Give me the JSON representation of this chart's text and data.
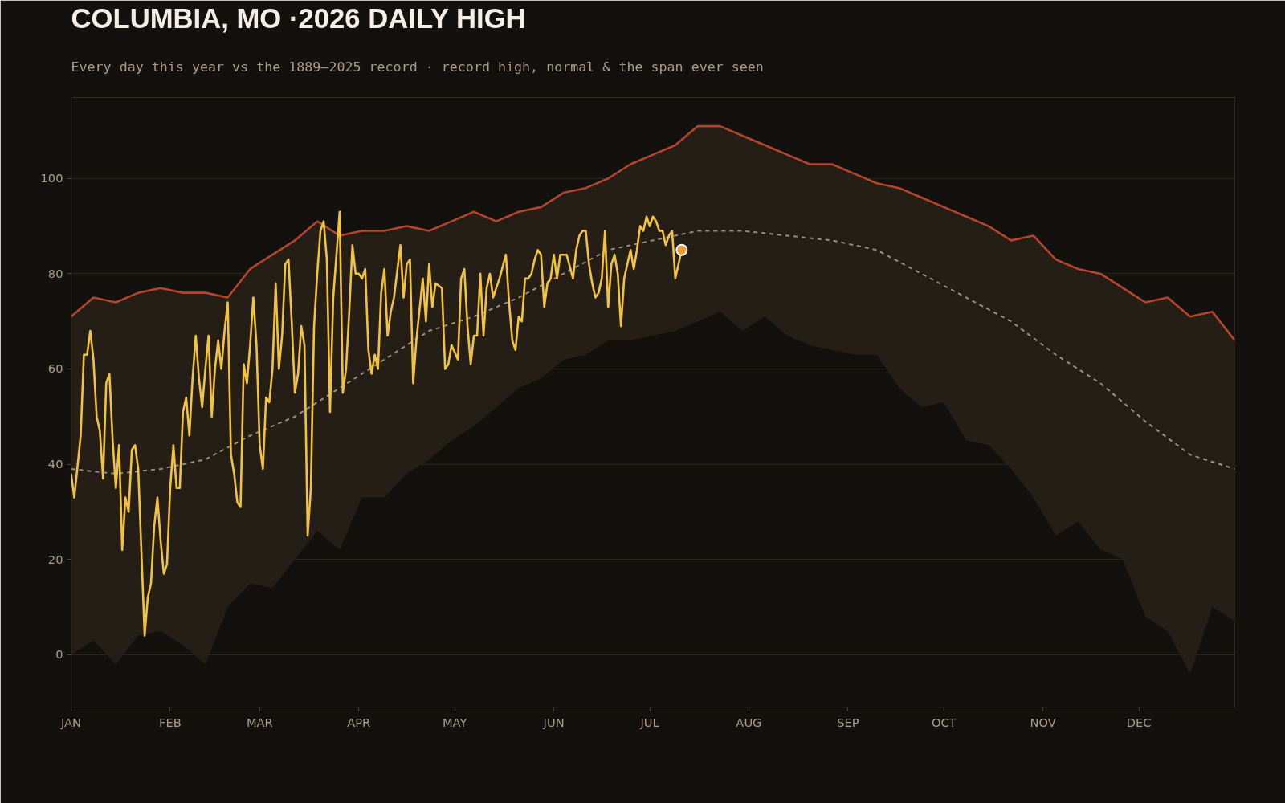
{
  "chart_data": {
    "type": "line",
    "title": "COLUMBIA, MO ·2026 DAILY HIGH",
    "subtitle": "Every day this year vs the 1889–2025 record · record high, normal & the span ever seen",
    "xlim": [
      "2026-01-01",
      "2026-12-31"
    ],
    "xticks": [
      {
        "value": "2026-01-01",
        "label": "JAN"
      },
      {
        "value": "2026-02-01",
        "label": "FEB"
      },
      {
        "value": "2026-03-01",
        "label": "MAR"
      },
      {
        "value": "2026-04-01",
        "label": "APR"
      },
      {
        "value": "2026-05-01",
        "label": "MAY"
      },
      {
        "value": "2026-06-01",
        "label": "JUN"
      },
      {
        "value": "2026-07-01",
        "label": "JUL"
      },
      {
        "value": "2026-08-01",
        "label": "AUG"
      },
      {
        "value": "2026-09-01",
        "label": "SEP"
      },
      {
        "value": "2026-10-01",
        "label": "OCT"
      },
      {
        "value": "2026-11-01",
        "label": "NOV"
      },
      {
        "value": "2026-12-01",
        "label": "DEC"
      }
    ],
    "ylim": [
      -11,
      117
    ],
    "yticks": [
      0,
      20,
      40,
      60,
      80,
      100
    ],
    "grid": "y",
    "series": [
      {
        "color": "#b5452a",
        "x": [
          "2026-01-01",
          "2026-01-08",
          "2026-01-15",
          "2026-01-22",
          "2026-01-29",
          "2026-02-05",
          "2026-02-12",
          "2026-02-19",
          "2026-02-26",
          "2026-03-05",
          "2026-03-12",
          "2026-03-19",
          "2026-03-26",
          "2026-04-02",
          "2026-04-09",
          "2026-04-16",
          "2026-04-23",
          "2026-04-30",
          "2026-05-07",
          "2026-05-14",
          "2026-05-21",
          "2026-05-28",
          "2026-06-04",
          "2026-06-11",
          "2026-06-18",
          "2026-06-25",
          "2026-07-02",
          "2026-07-09",
          "2026-07-16",
          "2026-07-23",
          "2026-07-30",
          "2026-08-06",
          "2026-08-13",
          "2026-08-20",
          "2026-08-27",
          "2026-09-03",
          "2026-09-10",
          "2026-09-17",
          "2026-09-24",
          "2026-10-01",
          "2026-10-08",
          "2026-10-15",
          "2026-10-22",
          "2026-10-29",
          "2026-11-05",
          "2026-11-12",
          "2026-11-19",
          "2026-11-26",
          "2026-12-03",
          "2026-12-10",
          "2026-12-17",
          "2026-12-24",
          "2026-12-31"
        ],
        "values": [
          71,
          75,
          74,
          76,
          77,
          76,
          76,
          75,
          81,
          84,
          87,
          91,
          88,
          89,
          89,
          90,
          89,
          91,
          93,
          91,
          93,
          94,
          97,
          98,
          100,
          103,
          105,
          107,
          111,
          111,
          109,
          107,
          105,
          103,
          103,
          101,
          99,
          98,
          96,
          94,
          92,
          90,
          87,
          88,
          83,
          81,
          80,
          77,
          74,
          75,
          71,
          72,
          66
        ],
        "lower": [
          0,
          3,
          -2,
          4,
          5,
          2,
          -2,
          10,
          15,
          14,
          20,
          26,
          22,
          33,
          33,
          38,
          41,
          45,
          48,
          52,
          56,
          58,
          62,
          63,
          66,
          66,
          67,
          68,
          70,
          72,
          68,
          71,
          67,
          65,
          64,
          63,
          63,
          56,
          52,
          53,
          45,
          44,
          39,
          33,
          25,
          28,
          22,
          20,
          8,
          5,
          -4,
          10,
          7
        ],
        "upper": [
          71,
          75,
          74,
          76,
          77,
          76,
          76,
          75,
          81,
          84,
          87,
          91,
          88,
          89,
          89,
          90,
          89,
          91,
          93,
          91,
          93,
          94,
          97,
          98,
          100,
          103,
          105,
          107,
          111,
          111,
          109,
          107,
          105,
          103,
          103,
          101,
          99,
          98,
          96,
          94,
          92,
          90,
          87,
          88,
          83,
          81,
          80,
          77,
          74,
          75,
          71,
          72,
          66
        ]
      },
      {
        "color": "#9a8e78",
        "line_style": "dashed",
        "x": [
          "2026-01-01",
          "2026-01-15",
          "2026-01-29",
          "2026-02-12",
          "2026-02-26",
          "2026-03-12",
          "2026-03-26",
          "2026-04-09",
          "2026-04-23",
          "2026-05-07",
          "2026-05-21",
          "2026-06-04",
          "2026-06-18",
          "2026-07-02",
          "2026-07-16",
          "2026-07-30",
          "2026-08-13",
          "2026-08-27",
          "2026-09-10",
          "2026-09-24",
          "2026-10-08",
          "2026-10-22",
          "2026-11-05",
          "2026-11-19",
          "2026-12-03",
          "2026-12-17",
          "2026-12-31"
        ],
        "values": [
          39,
          38,
          39,
          41,
          46,
          50,
          56,
          62,
          68,
          71,
          75,
          80,
          85,
          87,
          89,
          89,
          88,
          87,
          85,
          80,
          75,
          70,
          63,
          57,
          49,
          42,
          39
        ]
      },
      {
        "color": "#f2c23c",
        "x": [
          "2026-01-01",
          "2026-01-02",
          "2026-01-04",
          "2026-01-05",
          "2026-01-06",
          "2026-01-07",
          "2026-01-08",
          "2026-01-09",
          "2026-01-10",
          "2026-01-11",
          "2026-01-12",
          "2026-01-13",
          "2026-01-14",
          "2026-01-15",
          "2026-01-16",
          "2026-01-17",
          "2026-01-18",
          "2026-01-19",
          "2026-01-20",
          "2026-01-21",
          "2026-01-22",
          "2026-01-24",
          "2026-01-25",
          "2026-01-26",
          "2026-01-27",
          "2026-01-28",
          "2026-01-29",
          "2026-01-30",
          "2026-01-31",
          "2026-02-01",
          "2026-02-02",
          "2026-02-03",
          "2026-02-04",
          "2026-02-05",
          "2026-02-06",
          "2026-02-07",
          "2026-02-08",
          "2026-02-09",
          "2026-02-10",
          "2026-02-11",
          "2026-02-12",
          "2026-02-13",
          "2026-02-14",
          "2026-02-15",
          "2026-02-16",
          "2026-02-17",
          "2026-02-18",
          "2026-02-19",
          "2026-02-20",
          "2026-02-21",
          "2026-02-22",
          "2026-02-23",
          "2026-02-24",
          "2026-02-25",
          "2026-02-26",
          "2026-02-27",
          "2026-02-28",
          "2026-03-01",
          "2026-03-02",
          "2026-03-03",
          "2026-03-04",
          "2026-03-05",
          "2026-03-06",
          "2026-03-07",
          "2026-03-08",
          "2026-03-09",
          "2026-03-10",
          "2026-03-11",
          "2026-03-12",
          "2026-03-13",
          "2026-03-14",
          "2026-03-15",
          "2026-03-16",
          "2026-03-17",
          "2026-03-18",
          "2026-03-19",
          "2026-03-20",
          "2026-03-21",
          "2026-03-22",
          "2026-03-23",
          "2026-03-24",
          "2026-03-26",
          "2026-03-27",
          "2026-03-28",
          "2026-03-29",
          "2026-03-30",
          "2026-03-31",
          "2026-04-01",
          "2026-04-02",
          "2026-04-03",
          "2026-04-04",
          "2026-04-05",
          "2026-04-06",
          "2026-04-07",
          "2026-04-08",
          "2026-04-09",
          "2026-04-10",
          "2026-04-11",
          "2026-04-12",
          "2026-04-14",
          "2026-04-15",
          "2026-04-16",
          "2026-04-17",
          "2026-04-18",
          "2026-04-19",
          "2026-04-21",
          "2026-04-22",
          "2026-04-23",
          "2026-04-24",
          "2026-04-25",
          "2026-04-27",
          "2026-04-28",
          "2026-04-29",
          "2026-04-30",
          "2026-05-02",
          "2026-05-03",
          "2026-05-04",
          "2026-05-05",
          "2026-05-06",
          "2026-05-07",
          "2026-05-08",
          "2026-05-09",
          "2026-05-10",
          "2026-05-11",
          "2026-05-12",
          "2026-05-13",
          "2026-05-14",
          "2026-05-15",
          "2026-05-17",
          "2026-05-18",
          "2026-05-19",
          "2026-05-20",
          "2026-05-21",
          "2026-05-22",
          "2026-05-23",
          "2026-05-24",
          "2026-05-25",
          "2026-05-26",
          "2026-05-27",
          "2026-05-28",
          "2026-05-29",
          "2026-05-30",
          "2026-05-31",
          "2026-06-01",
          "2026-06-02",
          "2026-06-03",
          "2026-06-05",
          "2026-06-07",
          "2026-06-08",
          "2026-06-09",
          "2026-06-10",
          "2026-06-11",
          "2026-06-12",
          "2026-06-13",
          "2026-06-14",
          "2026-06-15",
          "2026-06-16",
          "2026-06-17",
          "2026-06-18",
          "2026-06-19",
          "2026-06-20",
          "2026-06-21",
          "2026-06-22",
          "2026-06-23",
          "2026-06-24",
          "2026-06-25",
          "2026-06-26",
          "2026-06-27",
          "2026-06-28",
          "2026-06-29",
          "2026-06-30",
          "2026-07-01",
          "2026-07-02",
          "2026-07-03",
          "2026-07-04",
          "2026-07-05",
          "2026-07-06",
          "2026-07-07",
          "2026-07-08",
          "2026-07-09",
          "2026-07-11"
        ],
        "values": [
          38,
          33,
          46,
          63,
          63,
          68,
          62,
          50,
          47,
          37,
          57,
          59,
          45,
          35,
          44,
          22,
          33,
          30,
          43,
          44,
          39,
          4,
          12,
          15,
          27,
          33,
          24,
          17,
          19,
          35,
          44,
          35,
          35,
          51,
          54,
          46,
          58,
          67,
          58,
          52,
          60,
          67,
          50,
          60,
          66,
          60,
          68,
          74,
          42,
          38,
          32,
          31,
          61,
          57,
          65,
          75,
          65,
          44,
          39,
          54,
          53,
          60,
          78,
          60,
          67,
          82,
          83,
          70,
          55,
          59,
          69,
          65,
          25,
          35,
          69,
          80,
          89,
          91,
          83,
          51,
          75,
          93,
          55,
          60,
          72,
          86,
          80,
          80,
          79,
          81,
          64,
          59,
          63,
          60,
          76,
          81,
          67,
          72,
          75,
          86,
          75,
          82,
          83,
          57,
          66,
          79,
          70,
          82,
          73,
          78,
          77,
          60,
          61,
          65,
          62,
          79,
          81,
          69,
          61,
          67,
          67,
          80,
          67,
          77,
          80,
          75,
          77,
          79,
          84,
          74,
          66,
          64,
          71,
          70,
          79,
          79,
          80,
          83,
          85,
          84,
          73,
          78,
          79,
          84,
          79,
          84,
          84,
          79,
          85,
          88,
          89,
          89,
          82,
          78,
          75,
          76,
          79,
          89,
          73,
          82,
          84,
          80,
          69,
          79,
          82,
          85,
          81,
          85,
          90,
          89,
          92,
          90,
          92,
          91,
          89,
          89,
          86,
          88,
          89,
          79,
          85
        ]
      },
      {
        "type": "scatter",
        "color": "#f0a030",
        "marker": "circle",
        "x": [
          "2026-07-11"
        ],
        "values": [
          85
        ]
      }
    ]
  }
}
